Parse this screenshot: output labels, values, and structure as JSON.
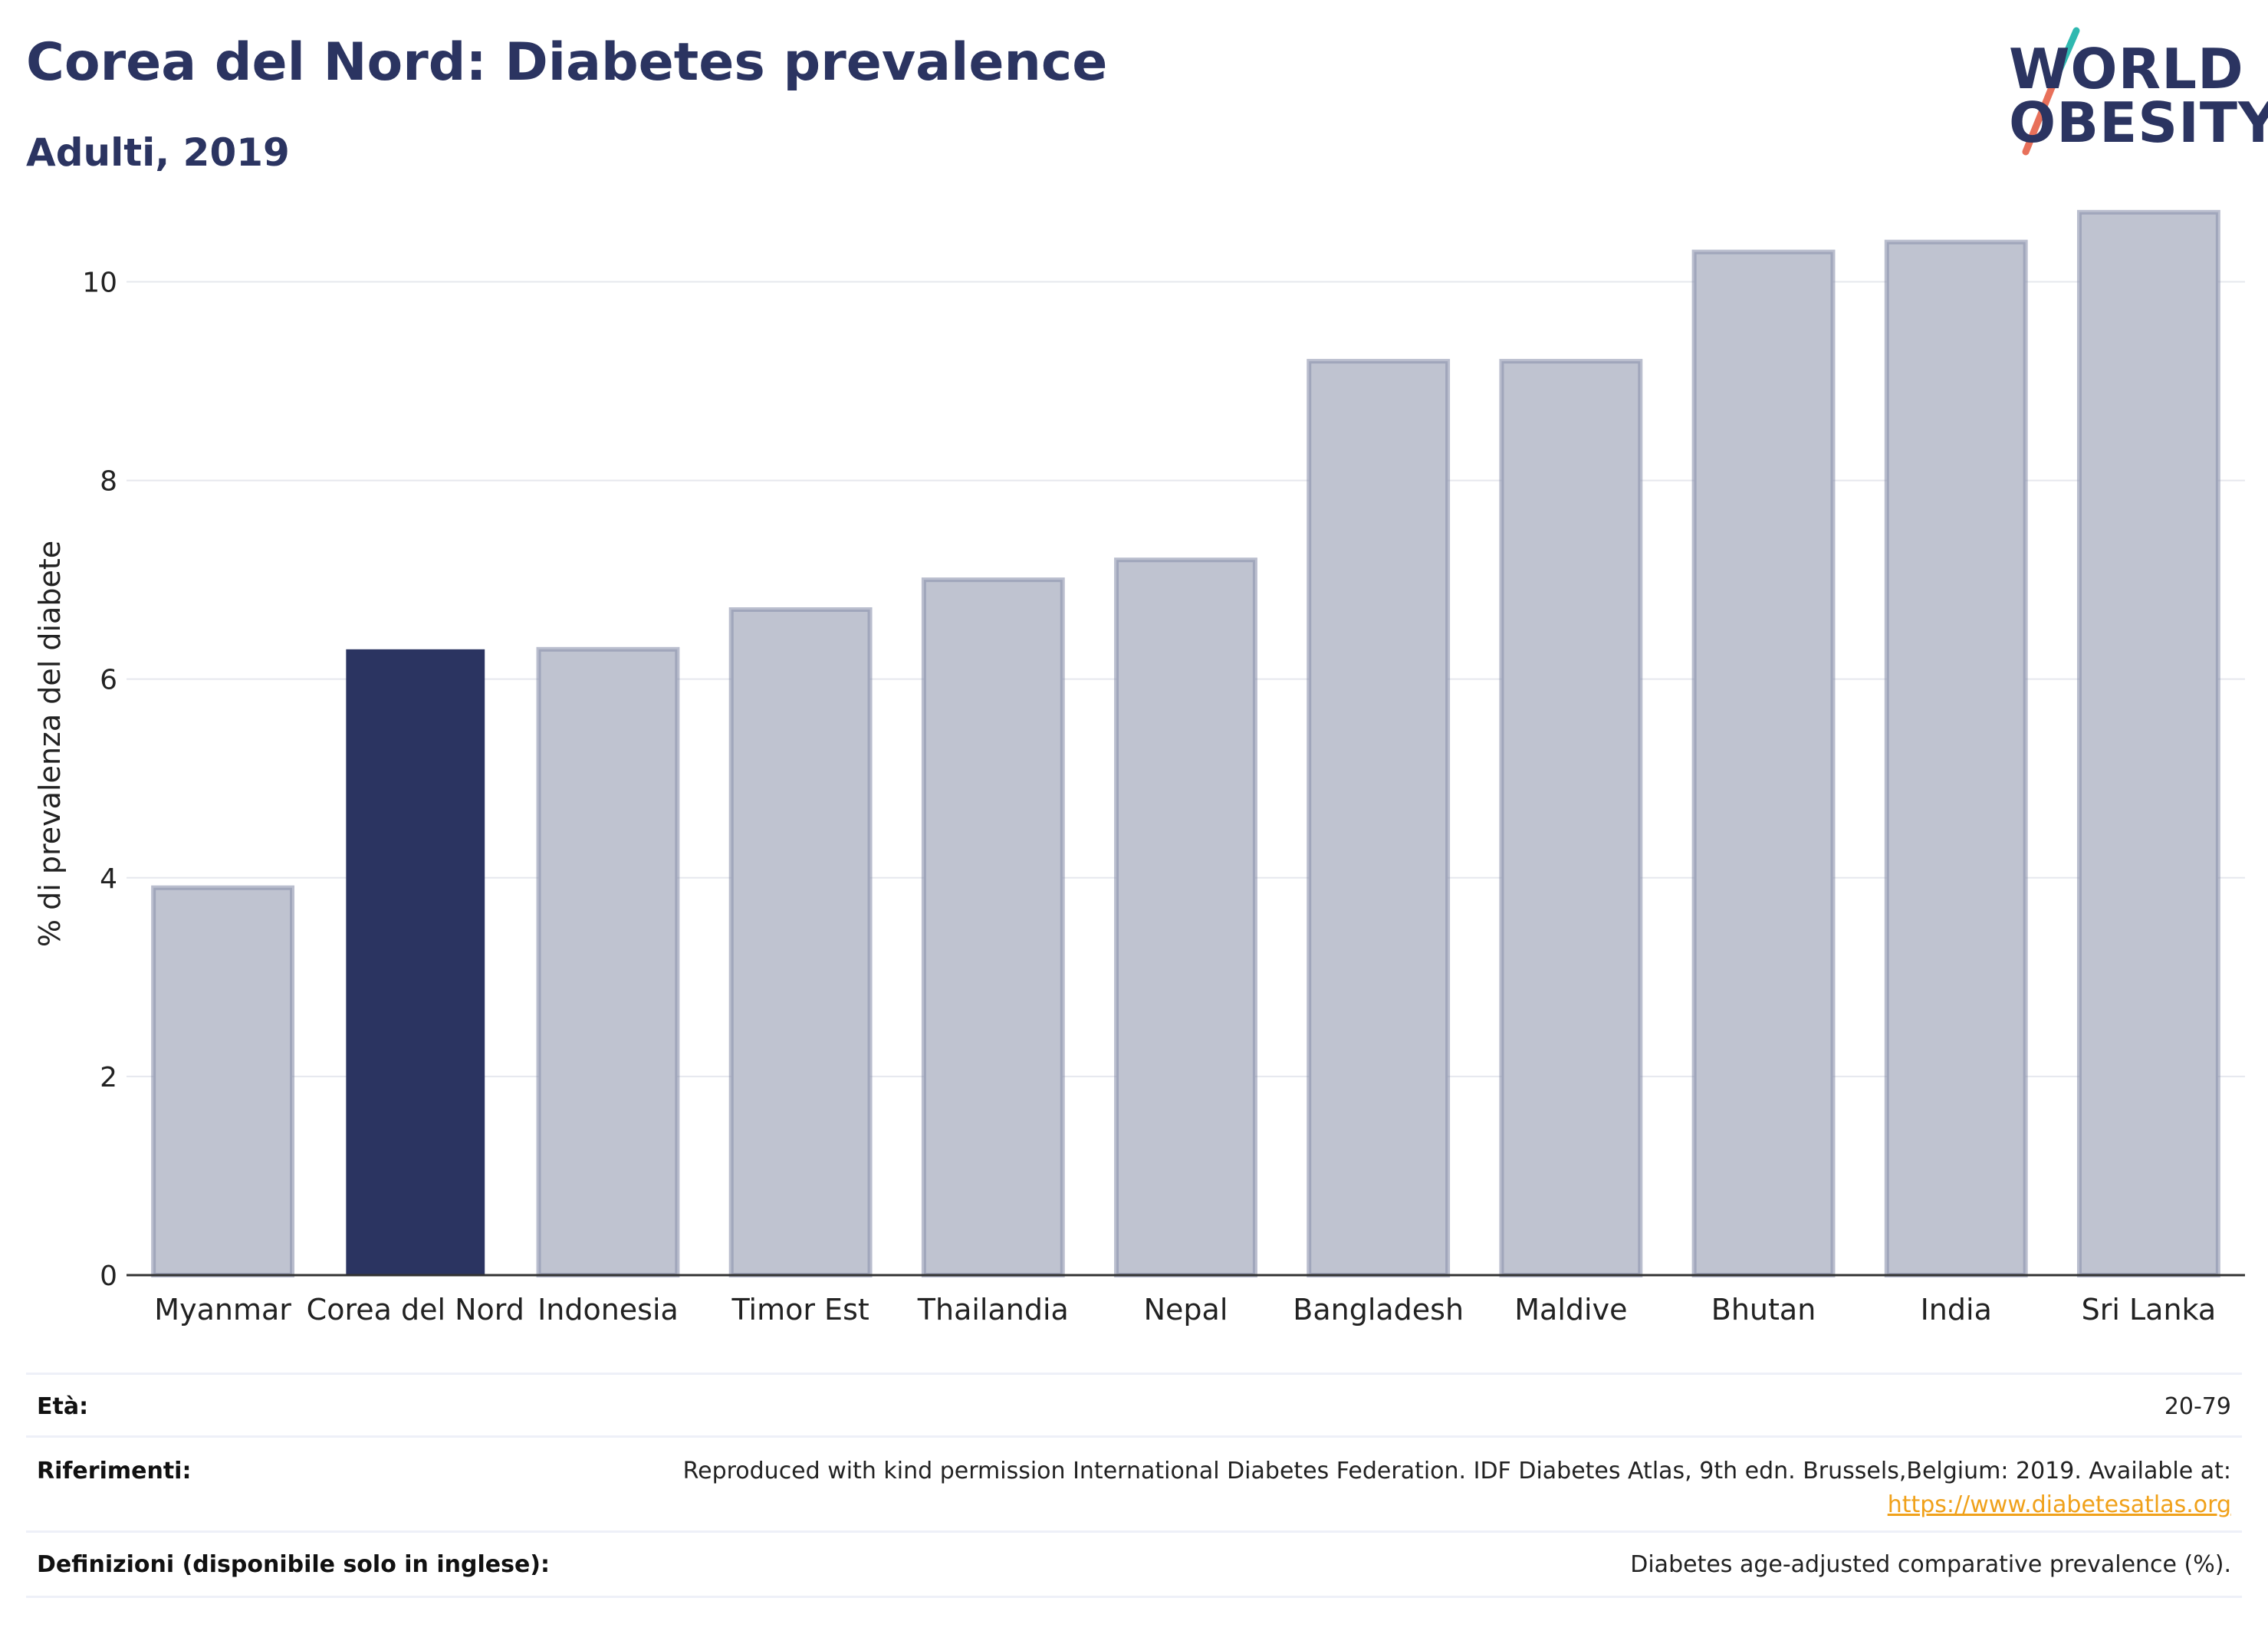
{
  "header": {
    "title": "Corea del Nord: Diabetes prevalence",
    "subtitle": "Adulti, 2019"
  },
  "logo": {
    "line1": "WORLD",
    "line2": "OBESITY",
    "slash_colors": [
      "#2fb8b0",
      "#e8705a"
    ],
    "text": "WORLD OBESITY"
  },
  "chart_data": {
    "type": "bar",
    "title": "Corea del Nord: Diabetes prevalence",
    "subtitle": "Adulti, 2019",
    "categories": [
      "Myanmar",
      "Corea del Nord",
      "Indonesia",
      "Timor Est",
      "Thailandia",
      "Nepal",
      "Bangladesh",
      "Maldive",
      "Bhutan",
      "India",
      "Sri Lanka"
    ],
    "values": [
      3.9,
      6.3,
      6.3,
      6.7,
      7.0,
      7.2,
      9.2,
      9.2,
      10.3,
      10.4,
      10.7
    ],
    "highlight": "Corea del Nord",
    "xlabel": "",
    "ylabel": "% di prevalenza del diabete",
    "ylim": [
      0,
      11.2
    ],
    "yticks": [
      0,
      2,
      4,
      6,
      8,
      10
    ],
    "grid": true,
    "legend": "none",
    "colors": {
      "highlight_fill": "#2b3461",
      "bar_fill": "#bfc3d0",
      "bar_stroke": "#8c93ad",
      "grid": "#e6e8ee",
      "axis": "#333333"
    }
  },
  "footer": {
    "rows": [
      {
        "label": "Età:",
        "value": "20-79"
      },
      {
        "label": "Riferimenti:",
        "value_line1": "Reproduced with kind permission International Diabetes Federation. IDF Diabetes Atlas, 9th edn. Brussels,Belgium: 2019. Available at:",
        "value_link": "https://www.diabetesatlas.org"
      },
      {
        "label": "Definizioni (disponibile solo in inglese):",
        "value": "Diabetes age-adjusted comparative prevalence (%)."
      }
    ]
  }
}
